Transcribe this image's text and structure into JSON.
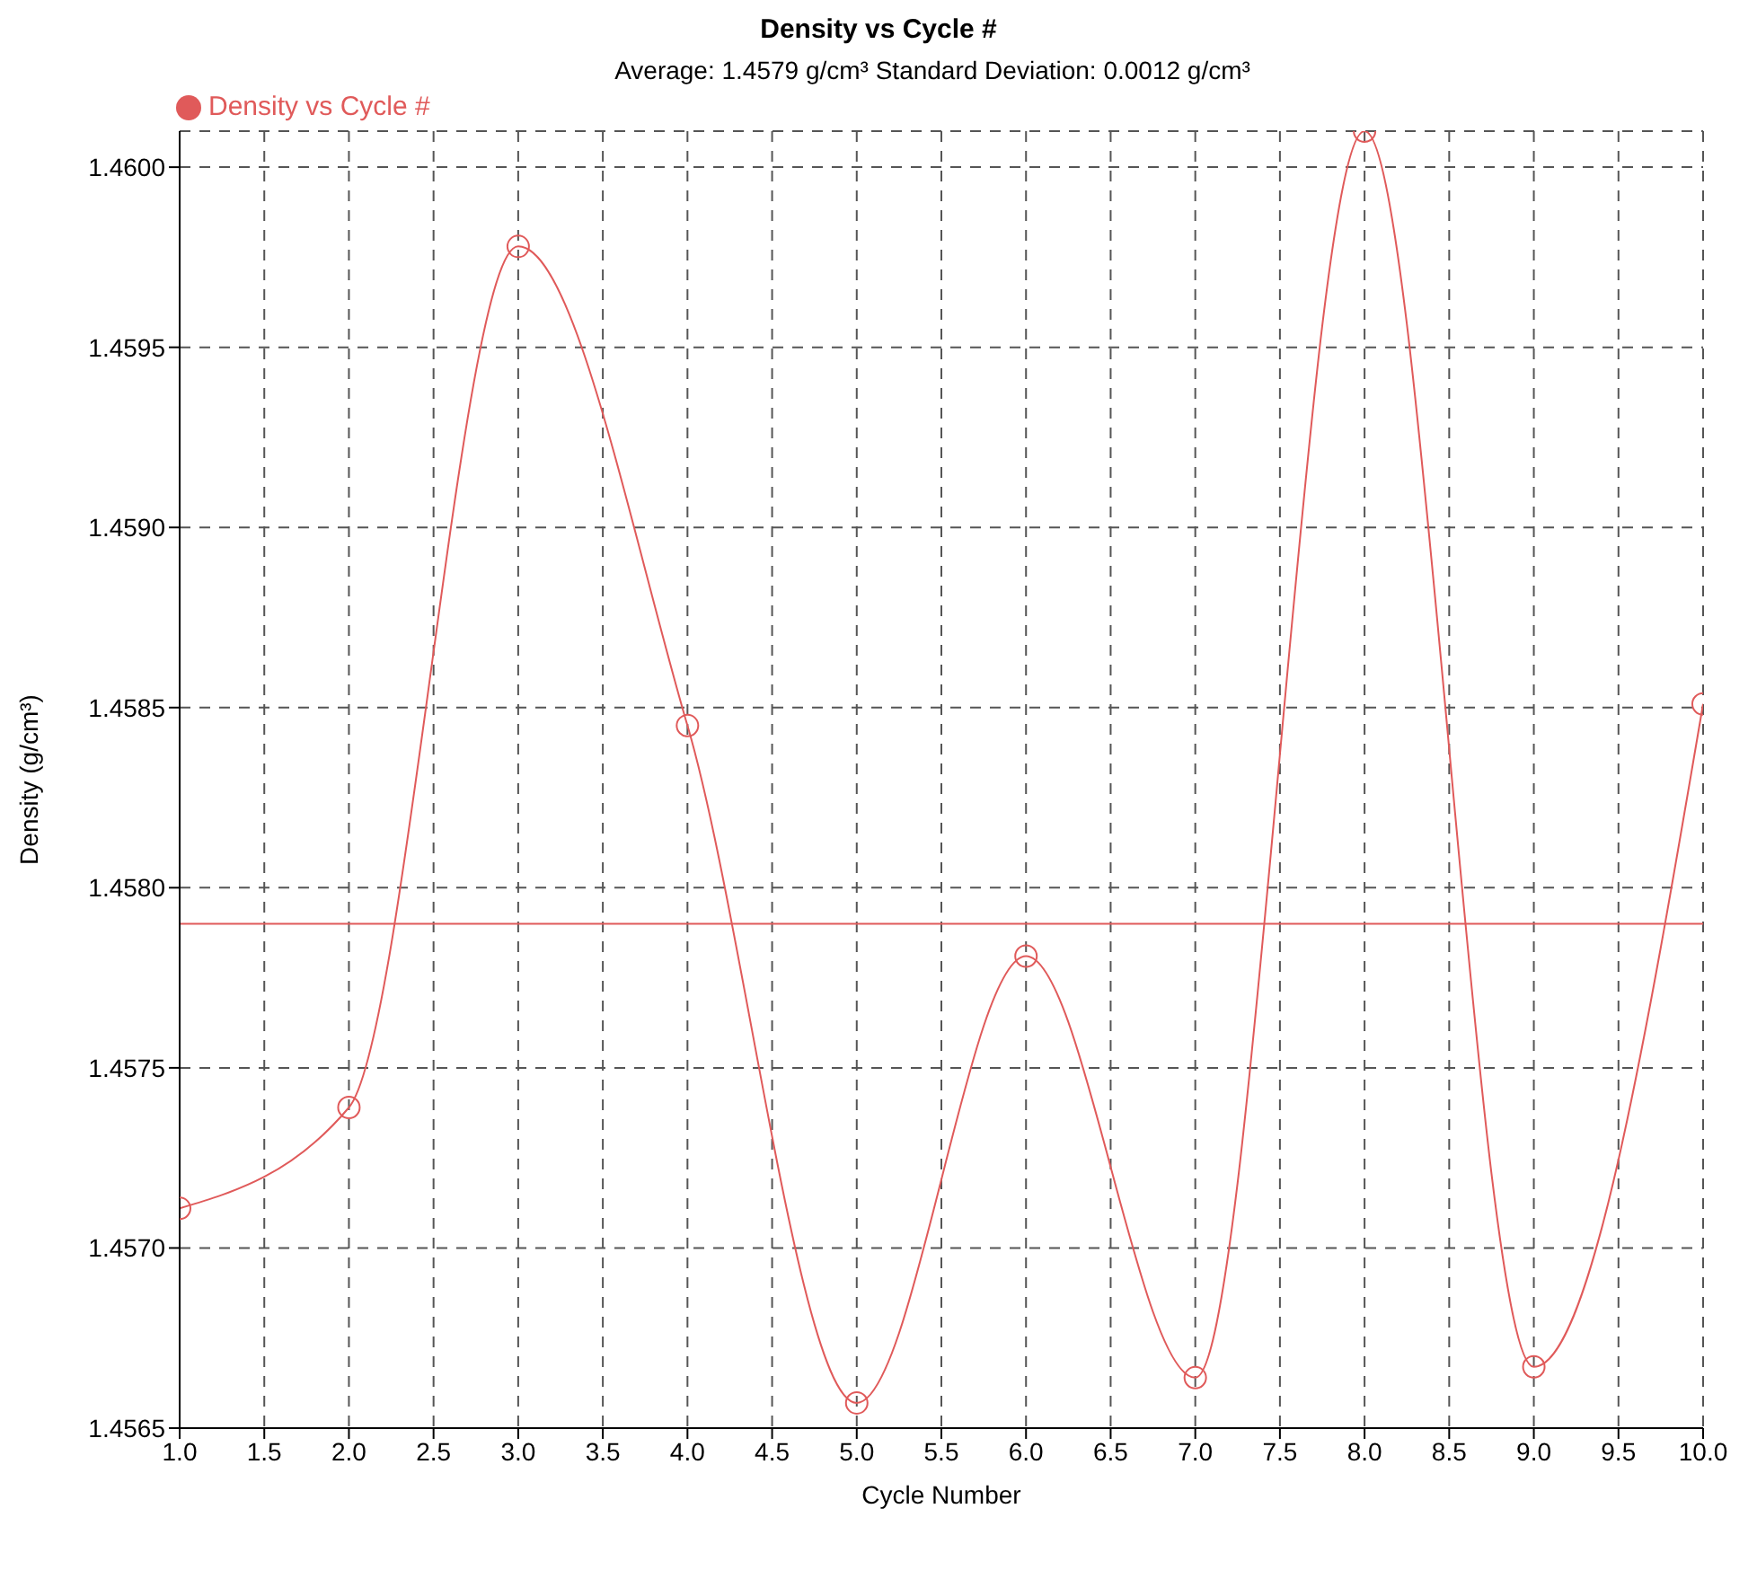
{
  "chart_data": {
    "type": "line",
    "title": "Density vs Cycle #",
    "subtitle": "Average:  1.4579 g/cm³     Standard Deviation:  0.0012 g/cm³",
    "xlabel": "Cycle Number",
    "ylabel": "Density (g/cm³)",
    "x": [
      1,
      2,
      3,
      4,
      5,
      6,
      7,
      8,
      9,
      10
    ],
    "series": [
      {
        "name": "Density vs Cycle #",
        "color": "#e05a5a",
        "values": [
          1.45711,
          1.45739,
          1.45978,
          1.45845,
          1.45657,
          1.45781,
          1.45664,
          1.4601,
          1.45667,
          1.45851
        ]
      }
    ],
    "xlim": [
      1,
      10
    ],
    "xticks": [
      {
        "value": 1,
        "label": "1.0"
      },
      {
        "value": 1.5,
        "label": "1.5"
      },
      {
        "value": 2,
        "label": "2.0"
      },
      {
        "value": 2.5,
        "label": "2.5"
      },
      {
        "value": 3,
        "label": "3.0"
      },
      {
        "value": 3.5,
        "label": "3.5"
      },
      {
        "value": 4,
        "label": "4.0"
      },
      {
        "value": 4.5,
        "label": "4.5"
      },
      {
        "value": 5,
        "label": "5.0"
      },
      {
        "value": 5.5,
        "label": "5.5"
      },
      {
        "value": 6,
        "label": "6.0"
      },
      {
        "value": 6.5,
        "label": "6.5"
      },
      {
        "value": 7,
        "label": "7.0"
      },
      {
        "value": 7.5,
        "label": "7.5"
      },
      {
        "value": 8,
        "label": "8.0"
      },
      {
        "value": 8.5,
        "label": "8.5"
      },
      {
        "value": 9,
        "label": "9.0"
      },
      {
        "value": 9.5,
        "label": "9.5"
      },
      {
        "value": 10,
        "label": "10.0"
      }
    ],
    "ylim": [
      1.4565,
      1.4601
    ],
    "yticks": [
      {
        "value": 1.4565,
        "label": "1.4565"
      },
      {
        "value": 1.457,
        "label": "1.4570"
      },
      {
        "value": 1.4575,
        "label": "1.4575"
      },
      {
        "value": 1.458,
        "label": "1.4580"
      },
      {
        "value": 1.4585,
        "label": "1.4585"
      },
      {
        "value": 1.459,
        "label": "1.4590"
      },
      {
        "value": 1.4595,
        "label": "1.4595"
      },
      {
        "value": 1.46,
        "label": "1.4600"
      }
    ],
    "ref_lines": [
      {
        "axis": "y",
        "value": 1.4579,
        "color": "#e05a5a"
      }
    ],
    "grid": true,
    "legend": "top left",
    "marker": "circle",
    "line_style": "solid"
  }
}
